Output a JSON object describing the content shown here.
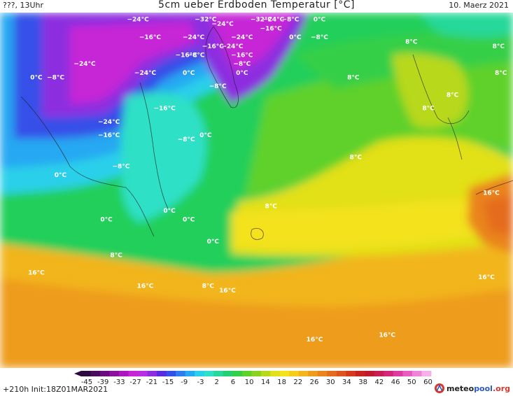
{
  "header": {
    "left": "???, 13Uhr",
    "title": "5cm ueber Erdboden Temperatur [°C]",
    "right": "10. Maerz 2021"
  },
  "footer": {
    "run_info": "+210h  Init:18Z01MAR2021",
    "logo_prefix": "meteo",
    "logo_mid": "pool",
    "logo_suffix": ".org"
  },
  "colorbar": {
    "tick_labels": [
      "-45",
      "-39",
      "-33",
      "-27",
      "-21",
      "-15",
      "-9",
      "-3",
      "2",
      "6",
      "10",
      "14",
      "18",
      "22",
      "26",
      "30",
      "34",
      "38",
      "42",
      "46",
      "50",
      "60"
    ],
    "colors": [
      "#2b0a3d",
      "#4a0a5e",
      "#6b0b7e",
      "#8d109e",
      "#ad17be",
      "#c626d6",
      "#b92ee3",
      "#8c2de0",
      "#5a2ae0",
      "#3450e8",
      "#2f7cf0",
      "#27a8f2",
      "#2ad0ea",
      "#2ee0c6",
      "#28d89a",
      "#22d070",
      "#34cf46",
      "#5ed12a",
      "#8ad21f",
      "#b8d81a",
      "#e2e018",
      "#f3e21c",
      "#f5cc1c",
      "#f2b51c",
      "#ee9c1c",
      "#ea841c",
      "#e56c1c",
      "#df531c",
      "#d63a1c",
      "#c9241e",
      "#c01a30",
      "#c81e55",
      "#d3287a",
      "#de3aa0",
      "#e85cc0",
      "#f085d8",
      "#f6b0ea"
    ]
  },
  "labels": [
    {
      "text": "−24°C",
      "lon": -73,
      "lat": 82
    },
    {
      "text": "−32°C",
      "lon": -45,
      "lat": 82
    },
    {
      "text": "−24°C",
      "lon": -38,
      "lat": 81
    },
    {
      "text": "−32°C",
      "lon": -22,
      "lat": 82
    },
    {
      "text": "−24°C",
      "lon": -17,
      "lat": 82
    },
    {
      "text": "−8°C",
      "lon": -10,
      "lat": 82
    },
    {
      "text": "0°C",
      "lon": 2,
      "lat": 82
    },
    {
      "text": "−16°C",
      "lon": -18,
      "lat": 80
    },
    {
      "text": "−16°C",
      "lon": -68,
      "lat": 78
    },
    {
      "text": "−24°C",
      "lon": -50,
      "lat": 78
    },
    {
      "text": "−24°C",
      "lon": -30,
      "lat": 78
    },
    {
      "text": "0°C",
      "lon": -8,
      "lat": 78
    },
    {
      "text": "−8°C",
      "lon": 2,
      "lat": 78
    },
    {
      "text": "8°C",
      "lon": 40,
      "lat": 77
    },
    {
      "text": "8°C",
      "lon": 76,
      "lat": 76
    },
    {
      "text": "−16°C",
      "lon": -42,
      "lat": 76
    },
    {
      "text": "−24°C",
      "lon": -34,
      "lat": 76
    },
    {
      "text": "−16°C",
      "lon": -53,
      "lat": 74
    },
    {
      "text": "−8°C",
      "lon": -49,
      "lat": 74
    },
    {
      "text": "−16°C",
      "lon": -30,
      "lat": 74
    },
    {
      "text": "−8°C",
      "lon": -30,
      "lat": 72
    },
    {
      "text": "−24°C",
      "lon": -95,
      "lat": 72
    },
    {
      "text": "0°C",
      "lon": -52,
      "lat": 70
    },
    {
      "text": "0°C",
      "lon": -30,
      "lat": 70
    },
    {
      "text": "−24°C",
      "lon": -70,
      "lat": 70
    },
    {
      "text": "8°C",
      "lon": 77,
      "lat": 70
    },
    {
      "text": "8°C",
      "lon": 16,
      "lat": 69
    },
    {
      "text": "0°C",
      "lon": -115,
      "lat": 69
    },
    {
      "text": "−8°C",
      "lon": -107,
      "lat": 69
    },
    {
      "text": "−8°C",
      "lon": -40,
      "lat": 67
    },
    {
      "text": "8°C",
      "lon": 57,
      "lat": 65
    },
    {
      "text": "8°C",
      "lon": 47,
      "lat": 62
    },
    {
      "text": "−16°C",
      "lon": -62,
      "lat": 62
    },
    {
      "text": "−24°C",
      "lon": -85,
      "lat": 59
    },
    {
      "text": "−16°C",
      "lon": -85,
      "lat": 56
    },
    {
      "text": "−8°C",
      "lon": -53,
      "lat": 55
    },
    {
      "text": "0°C",
      "lon": -45,
      "lat": 56
    },
    {
      "text": "8°C",
      "lon": 17,
      "lat": 51
    },
    {
      "text": "−8°C",
      "lon": -80,
      "lat": 49
    },
    {
      "text": "0°C",
      "lon": -105,
      "lat": 47
    },
    {
      "text": "16°C",
      "lon": 73,
      "lat": 43
    },
    {
      "text": "8°C",
      "lon": -18,
      "lat": 40
    },
    {
      "text": "0°C",
      "lon": -60,
      "lat": 39
    },
    {
      "text": "0°C",
      "lon": -86,
      "lat": 37
    },
    {
      "text": "0°C",
      "lon": -52,
      "lat": 37
    },
    {
      "text": "0°C",
      "lon": -42,
      "lat": 32
    },
    {
      "text": "8°C",
      "lon": -82,
      "lat": 29
    },
    {
      "text": "16°C",
      "lon": -115,
      "lat": 25
    },
    {
      "text": "16°C",
      "lon": -70,
      "lat": 22
    },
    {
      "text": "8°C",
      "lon": -44,
      "lat": 22
    },
    {
      "text": "16°C",
      "lon": -36,
      "lat": 21
    },
    {
      "text": "16°C",
      "lon": 71,
      "lat": 24
    },
    {
      "text": "16°C",
      "lon": 0,
      "lat": 10
    },
    {
      "text": "16°C",
      "lon": 30,
      "lat": 11
    }
  ]
}
